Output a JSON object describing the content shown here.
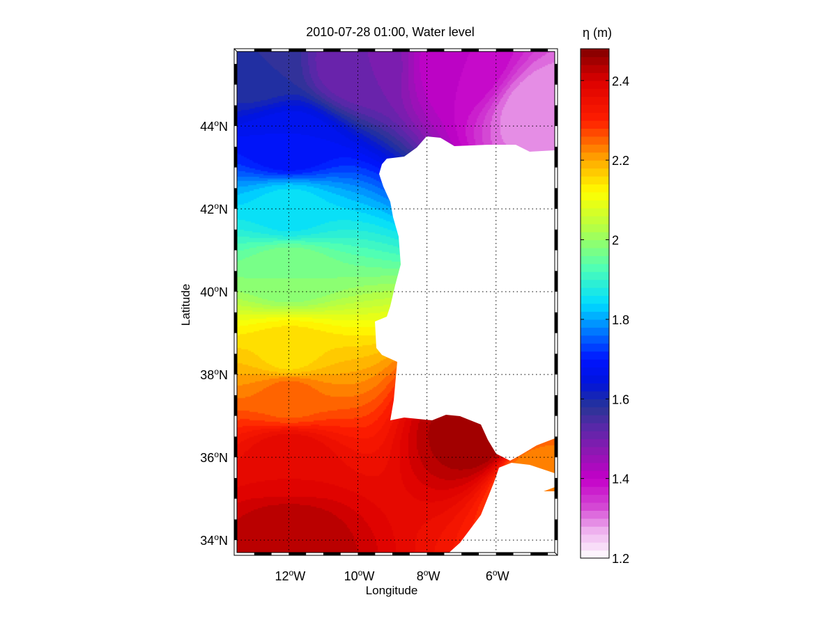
{
  "chart_data": {
    "type": "heatmap",
    "title": "2010-07-28 01:00, Water level",
    "xlabel": "Longitude",
    "ylabel": "Latitude",
    "colorbar_label": "η (m)",
    "x_range_deg_east": [
      -13.5,
      -4.3
    ],
    "y_range_deg_north": [
      33.7,
      45.8
    ],
    "x_ticks": [
      {
        "value": -12,
        "deg": "12",
        "hem": "W"
      },
      {
        "value": -10,
        "deg": "10",
        "hem": "W"
      },
      {
        "value": -8,
        "deg": "8",
        "hem": "W"
      },
      {
        "value": -6,
        "deg": "6",
        "hem": "W"
      }
    ],
    "y_ticks": [
      {
        "value": 34,
        "deg": "34",
        "hem": "N"
      },
      {
        "value": 36,
        "deg": "36",
        "hem": "N"
      },
      {
        "value": 38,
        "deg": "38",
        "hem": "N"
      },
      {
        "value": 40,
        "deg": "40",
        "hem": "N"
      },
      {
        "value": 42,
        "deg": "42",
        "hem": "N"
      },
      {
        "value": 44,
        "deg": "44",
        "hem": "N"
      }
    ],
    "degree_symbol": "o",
    "colorbar_range": [
      1.2,
      2.48
    ],
    "colorbar_ticks": [
      "1.2",
      "1.4",
      "1.6",
      "1.8",
      "2",
      "2.2",
      "2.4"
    ],
    "gridlines": true,
    "colormap": "jet with white-pink-magenta-purple low end",
    "water_level_samples": [
      {
        "lon": -13,
        "lat": 45.5,
        "eta": 1.58
      },
      {
        "lon": -10,
        "lat": 45.5,
        "eta": 1.5
      },
      {
        "lon": -7,
        "lat": 45.5,
        "eta": 1.4
      },
      {
        "lon": -4.6,
        "lat": 44.4,
        "eta": 1.28
      },
      {
        "lon": -12,
        "lat": 43.5,
        "eta": 1.68
      },
      {
        "lon": -12,
        "lat": 42,
        "eta": 1.85
      },
      {
        "lon": -12,
        "lat": 40.5,
        "eta": 1.98
      },
      {
        "lon": -12,
        "lat": 38.5,
        "eta": 2.15
      },
      {
        "lon": -12,
        "lat": 37.5,
        "eta": 2.25
      },
      {
        "lon": -12,
        "lat": 36,
        "eta": 2.38
      },
      {
        "lon": -12,
        "lat": 34,
        "eta": 2.44
      },
      {
        "lon": -6.5,
        "lat": 36.5,
        "eta": 2.46
      },
      {
        "lon": -5,
        "lat": 35.5,
        "eta": 2.22
      }
    ]
  }
}
